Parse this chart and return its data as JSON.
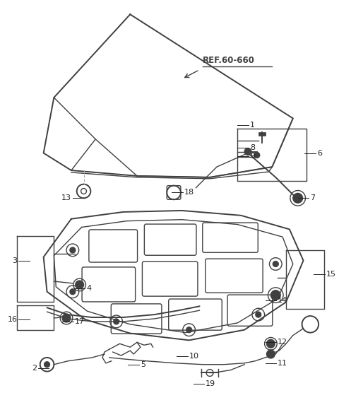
{
  "bg_color": "#ffffff",
  "line_color": "#404040",
  "ref_label": "REF.60-660",
  "fig_w": 4.8,
  "fig_h": 5.9,
  "dpi": 100
}
